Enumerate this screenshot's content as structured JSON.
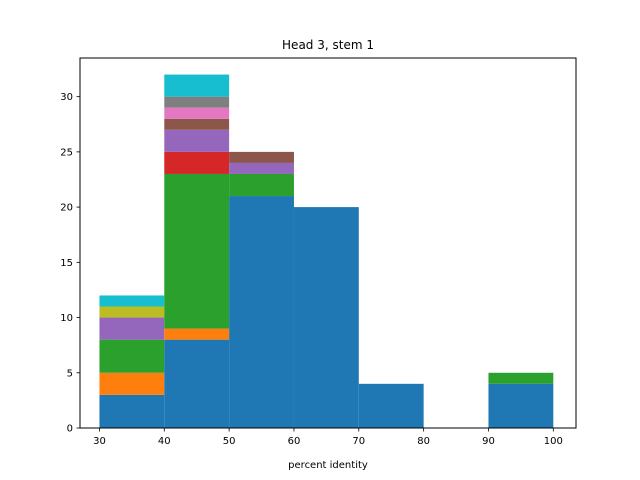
{
  "chart_data": {
    "type": "bar",
    "stacked": true,
    "title": "Head 3, stem 1",
    "xlabel": "percent identity",
    "ylabel": "",
    "bin_edges": [
      30,
      40,
      50,
      60,
      70,
      80,
      90,
      100
    ],
    "xlim": [
      27,
      103.5
    ],
    "ylim": [
      0,
      33.5
    ],
    "xticks": [
      30,
      40,
      50,
      60,
      70,
      80,
      90,
      100
    ],
    "yticks": [
      0,
      5,
      10,
      15,
      20,
      25,
      30
    ],
    "grid": false,
    "legend": "none",
    "series": [
      {
        "color": "#1f77b4",
        "values": [
          3,
          8,
          21,
          20,
          4,
          0,
          4
        ]
      },
      {
        "color": "#ff7f0e",
        "values": [
          2,
          1,
          0,
          0,
          0,
          0,
          0
        ]
      },
      {
        "color": "#2ca02c",
        "values": [
          3,
          14,
          2,
          0,
          0,
          0,
          1
        ]
      },
      {
        "color": "#d62728",
        "values": [
          0,
          2,
          0,
          0,
          0,
          0,
          0
        ]
      },
      {
        "color": "#9467bd",
        "values": [
          2,
          2,
          1,
          0,
          0,
          0,
          0
        ]
      },
      {
        "color": "#8c564b",
        "values": [
          0,
          1,
          1,
          0,
          0,
          0,
          0
        ]
      },
      {
        "color": "#e377c2",
        "values": [
          0,
          1,
          0,
          0,
          0,
          0,
          0
        ]
      },
      {
        "color": "#7f7f7f",
        "values": [
          0,
          1,
          0,
          0,
          0,
          0,
          0
        ]
      },
      {
        "color": "#bcbd22",
        "values": [
          1,
          0,
          0,
          0,
          0,
          0,
          0
        ]
      },
      {
        "color": "#17becf",
        "values": [
          1,
          2,
          0,
          0,
          0,
          0,
          0
        ]
      }
    ]
  }
}
